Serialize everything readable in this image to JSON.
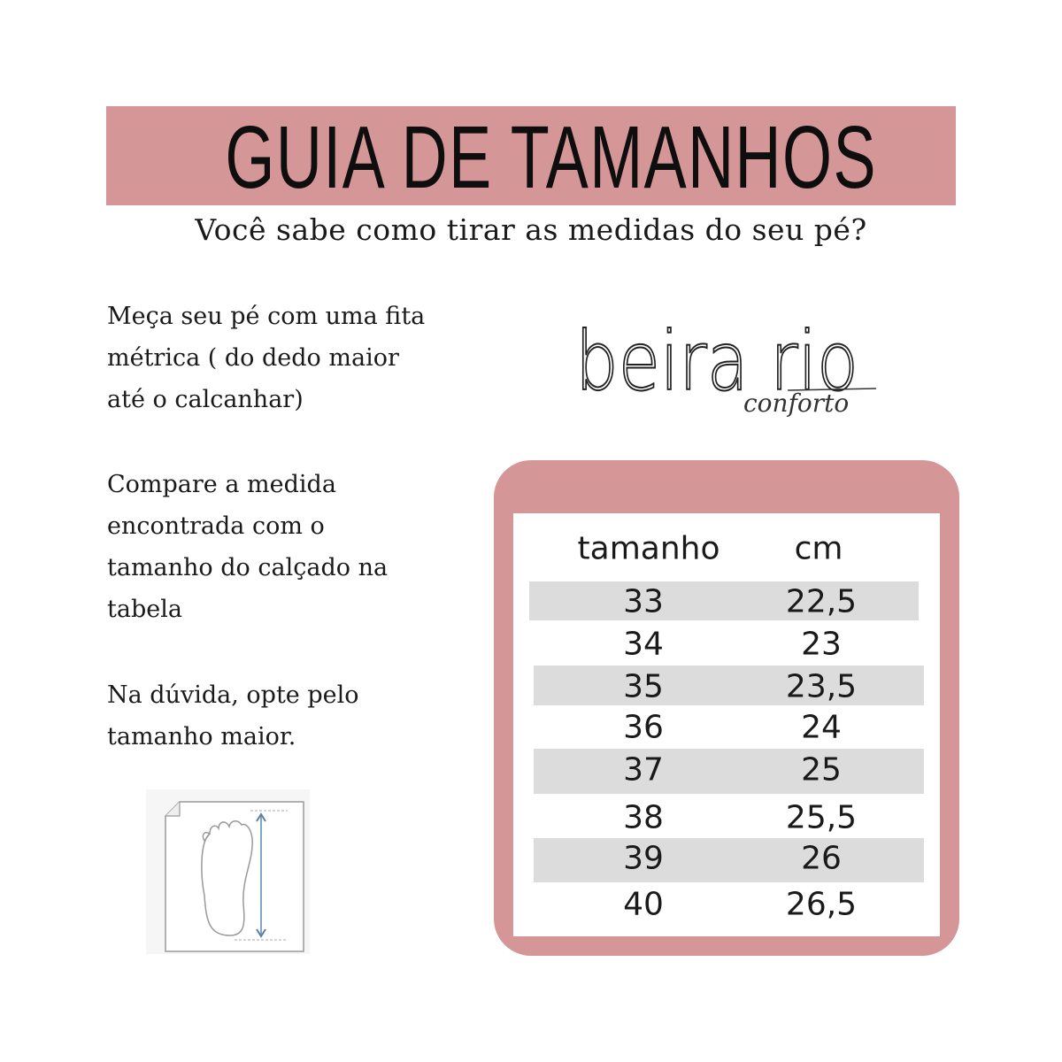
{
  "header": {
    "title": "GUIA DE TAMANHOS",
    "subtitle": "Você sabe como tirar as medidas do seu pé?"
  },
  "instructions": [
    "Meça seu pé com uma fita\nmétrica ( do dedo maior\naté o calcanhar)",
    "Compare a medida\nencontrada com o\ntamanho do calçado na\ntabela",
    "Na dúvida, opte pelo\ntamanho maior."
  ],
  "logo": {
    "brand": "beira rio",
    "tagline": "conforto"
  },
  "table": {
    "headers": [
      "tamanho",
      "cm"
    ],
    "rows": [
      [
        "33",
        "22,5"
      ],
      [
        "34",
        "23"
      ],
      [
        "35",
        "23,5"
      ],
      [
        "36",
        "24"
      ],
      [
        "37",
        "25"
      ],
      [
        "38",
        "25,5"
      ],
      [
        "39",
        "26"
      ],
      [
        "40",
        "26,5"
      ]
    ]
  },
  "colors": {
    "accent": "#d49696",
    "stripe": "#dcdcdc",
    "measure_arrow": "#7fa6c9"
  },
  "icons": [
    "foot-measurement-icon"
  ]
}
